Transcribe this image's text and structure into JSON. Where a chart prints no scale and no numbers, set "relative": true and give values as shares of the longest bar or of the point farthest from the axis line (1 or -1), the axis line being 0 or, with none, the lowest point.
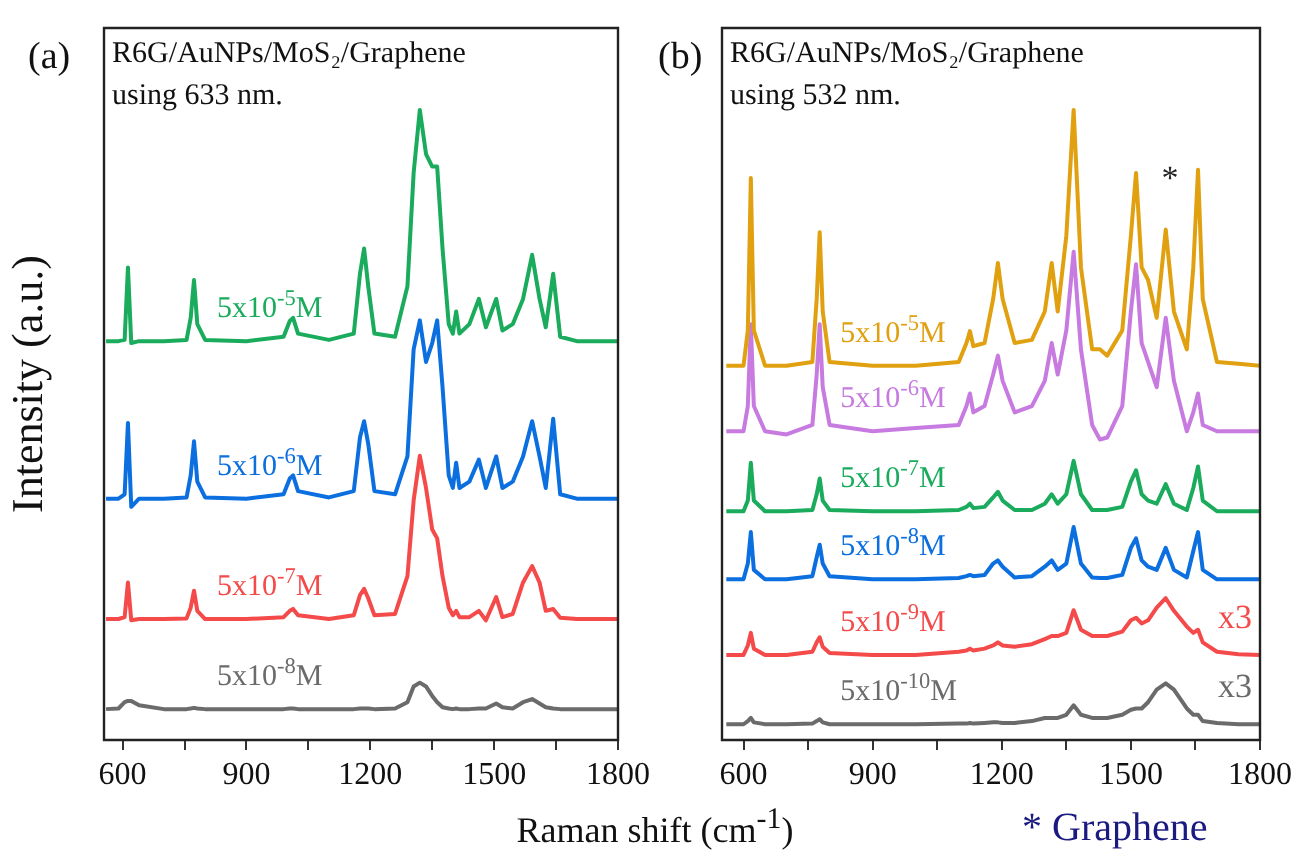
{
  "chart_data": [
    {
      "type": "line",
      "title": "R6G/AuNPs/MoS₂/Graphene",
      "subtitle": "using 633 nm.",
      "xlabel": "Raman shift (cm$^{-1}$)",
      "ylabel": "Intensity (a.u.)",
      "relative": true,
      "xlim": [
        555,
        1800
      ],
      "xticks": [
        600,
        {
          "value": 750,
          "label": null
        },
        900,
        {
          "value": 1050,
          "label": null
        },
        1200,
        {
          "value": 1350,
          "label": null
        },
        1500,
        {
          "value": 1650,
          "label": null
        },
        1800
      ],
      "tick_labels": "x",
      "grid": false,
      "legend": false,
      "marker": "none",
      "line_style": "solid",
      "annotations": [
        "(a)"
      ],
      "x": [
        560,
        590,
        605,
        613,
        621,
        640,
        700,
        755,
        765,
        773,
        781,
        800,
        900,
        990,
        1005,
        1013,
        1025,
        1100,
        1160,
        1175,
        1185,
        1195,
        1210,
        1260,
        1290,
        1305,
        1320,
        1335,
        1350,
        1362,
        1375,
        1390,
        1400,
        1408,
        1416,
        1440,
        1463,
        1480,
        1505,
        1520,
        1545,
        1570,
        1592,
        1610,
        1625,
        1643,
        1660,
        1700,
        1800
      ],
      "series": [
        {
          "name": "5x10$^{-5}$M",
          "color": "#1aab5c",
          "values": [
            0.633,
            0.633,
            0.635,
            0.75,
            0.63,
            0.633,
            0.633,
            0.635,
            0.67,
            0.73,
            0.66,
            0.635,
            0.633,
            0.64,
            0.665,
            0.67,
            0.645,
            0.635,
            0.645,
            0.74,
            0.78,
            0.72,
            0.645,
            0.64,
            0.72,
            0.9,
            1.0,
            0.93,
            0.91,
            0.91,
            0.78,
            0.66,
            0.645,
            0.68,
            0.645,
            0.66,
            0.7,
            0.655,
            0.7,
            0.65,
            0.66,
            0.7,
            0.77,
            0.7,
            0.655,
            0.74,
            0.64,
            0.633,
            0.633
          ]
        },
        {
          "name": "5x10$^{-6}$M",
          "color": "#0b6fe0",
          "values": [
            0.383,
            0.383,
            0.39,
            0.503,
            0.37,
            0.383,
            0.383,
            0.385,
            0.42,
            0.474,
            0.41,
            0.385,
            0.383,
            0.39,
            0.415,
            0.42,
            0.395,
            0.385,
            0.395,
            0.48,
            0.506,
            0.47,
            0.395,
            0.39,
            0.45,
            0.62,
            0.666,
            0.6,
            0.63,
            0.666,
            0.56,
            0.42,
            0.4,
            0.44,
            0.4,
            0.41,
            0.445,
            0.4,
            0.45,
            0.4,
            0.41,
            0.45,
            0.506,
            0.45,
            0.4,
            0.51,
            0.39,
            0.383,
            0.383
          ]
        },
        {
          "name": "5x10$^{-7}$M",
          "color": "#f44a4a",
          "values": [
            0.192,
            0.192,
            0.195,
            0.25,
            0.19,
            0.192,
            0.192,
            0.193,
            0.21,
            0.237,
            0.205,
            0.192,
            0.192,
            0.195,
            0.205,
            0.208,
            0.198,
            0.192,
            0.198,
            0.23,
            0.24,
            0.225,
            0.198,
            0.2,
            0.26,
            0.38,
            0.451,
            0.4,
            0.334,
            0.32,
            0.26,
            0.21,
            0.198,
            0.205,
            0.195,
            0.195,
            0.205,
            0.19,
            0.227,
            0.195,
            0.2,
            0.25,
            0.276,
            0.25,
            0.205,
            0.208,
            0.194,
            0.192,
            0.192
          ]
        },
        {
          "name": "5x10$^{-8}$M",
          "color": "#6b6b6b",
          "values": [
            0.049,
            0.05,
            0.06,
            0.062,
            0.062,
            0.055,
            0.049,
            0.049,
            0.05,
            0.051,
            0.05,
            0.049,
            0.049,
            0.049,
            0.05,
            0.05,
            0.049,
            0.049,
            0.049,
            0.05,
            0.05,
            0.05,
            0.049,
            0.05,
            0.06,
            0.085,
            0.091,
            0.085,
            0.07,
            0.06,
            0.052,
            0.05,
            0.049,
            0.05,
            0.049,
            0.049,
            0.05,
            0.05,
            0.058,
            0.052,
            0.05,
            0.06,
            0.065,
            0.058,
            0.052,
            0.05,
            0.049,
            0.049,
            0.049
          ]
        }
      ]
    },
    {
      "type": "line",
      "title": "R6G/AuNPs/MoS₂/Graphene",
      "subtitle": "using 532 nm.",
      "relative": true,
      "xlim": [
        550,
        1800
      ],
      "xticks": [
        600,
        {
          "value": 750,
          "label": null
        },
        900,
        {
          "value": 1050,
          "label": null
        },
        1200,
        {
          "value": 1350,
          "label": null
        },
        1500,
        {
          "value": 1650,
          "label": null
        },
        1800
      ],
      "tick_labels": "x",
      "grid": false,
      "legend": false,
      "marker": "none",
      "line_style": "solid",
      "annotations": [
        "(b)",
        "* Graphene",
        "*",
        "x3",
        "x3"
      ],
      "x": [
        560,
        600,
        610,
        617,
        624,
        650,
        700,
        760,
        770,
        777,
        784,
        800,
        900,
        1000,
        1100,
        1118,
        1126,
        1134,
        1160,
        1180,
        1191,
        1202,
        1230,
        1270,
        1300,
        1316,
        1330,
        1350,
        1367,
        1384,
        1410,
        1428,
        1445,
        1480,
        1500,
        1512,
        1525,
        1540,
        1560,
        1581,
        1600,
        1630,
        1645,
        1656,
        1667,
        1700,
        1750,
        1800
      ],
      "series": [
        {
          "name": "5x10$^{-5}$M",
          "color": "#e0a010",
          "values": [
            0.594,
            0.594,
            0.65,
            0.892,
            0.65,
            0.594,
            0.594,
            0.6,
            0.7,
            0.806,
            0.68,
            0.6,
            0.594,
            0.594,
            0.6,
            0.63,
            0.649,
            0.625,
            0.63,
            0.7,
            0.757,
            0.7,
            0.63,
            0.635,
            0.68,
            0.757,
            0.68,
            0.8,
            1.0,
            0.75,
            0.62,
            0.62,
            0.61,
            0.65,
            0.8,
            0.9,
            0.75,
            0.73,
            0.67,
            0.81,
            0.68,
            0.62,
            0.75,
            0.905,
            0.7,
            0.6,
            0.597,
            0.594
          ]
        },
        {
          "name": "5x10$^{-6}$M",
          "color": "#c77ae0",
          "values": [
            0.49,
            0.49,
            0.53,
            0.66,
            0.53,
            0.49,
            0.485,
            0.5,
            0.58,
            0.66,
            0.56,
            0.5,
            0.49,
            0.495,
            0.5,
            0.53,
            0.55,
            0.52,
            0.53,
            0.58,
            0.61,
            0.57,
            0.52,
            0.53,
            0.57,
            0.63,
            0.58,
            0.65,
            0.775,
            0.62,
            0.5,
            0.477,
            0.48,
            0.53,
            0.68,
            0.755,
            0.63,
            0.6,
            0.56,
            0.67,
            0.57,
            0.49,
            0.52,
            0.55,
            0.5,
            0.49,
            0.49,
            0.49
          ]
        },
        {
          "name": "5x10$^{-7}$M",
          "color": "#1aab5c",
          "values": [
            0.363,
            0.363,
            0.38,
            0.44,
            0.38,
            0.363,
            0.363,
            0.365,
            0.39,
            0.415,
            0.38,
            0.365,
            0.363,
            0.363,
            0.365,
            0.37,
            0.375,
            0.368,
            0.37,
            0.385,
            0.394,
            0.38,
            0.365,
            0.365,
            0.375,
            0.39,
            0.375,
            0.39,
            0.443,
            0.39,
            0.365,
            0.365,
            0.365,
            0.37,
            0.41,
            0.428,
            0.39,
            0.38,
            0.375,
            0.406,
            0.375,
            0.365,
            0.4,
            0.434,
            0.38,
            0.363,
            0.363,
            0.363
          ]
        },
        {
          "name": "5x10$^{-8}$M",
          "color": "#0b6fe0",
          "values": [
            0.255,
            0.255,
            0.28,
            0.33,
            0.27,
            0.255,
            0.255,
            0.26,
            0.29,
            0.31,
            0.28,
            0.26,
            0.255,
            0.255,
            0.257,
            0.26,
            0.262,
            0.26,
            0.262,
            0.28,
            0.285,
            0.275,
            0.258,
            0.26,
            0.275,
            0.285,
            0.27,
            0.28,
            0.338,
            0.28,
            0.258,
            0.257,
            0.257,
            0.262,
            0.305,
            0.32,
            0.285,
            0.275,
            0.27,
            0.305,
            0.27,
            0.258,
            0.3,
            0.33,
            0.27,
            0.255,
            0.255,
            0.255
          ]
        },
        {
          "name": "5x10$^{-9}$M",
          "color": "#f44a4a",
          "values": [
            0.135,
            0.135,
            0.15,
            0.17,
            0.145,
            0.135,
            0.135,
            0.14,
            0.155,
            0.163,
            0.148,
            0.138,
            0.135,
            0.135,
            0.14,
            0.142,
            0.145,
            0.142,
            0.145,
            0.15,
            0.155,
            0.15,
            0.148,
            0.152,
            0.16,
            0.165,
            0.165,
            0.17,
            0.206,
            0.175,
            0.165,
            0.165,
            0.165,
            0.172,
            0.19,
            0.194,
            0.185,
            0.19,
            0.21,
            0.225,
            0.205,
            0.18,
            0.17,
            0.175,
            0.155,
            0.14,
            0.136,
            0.135
          ]
        },
        {
          "name": "5x10$^{-10}$M",
          "color": "#6b6b6b",
          "values": [
            0.025,
            0.025,
            0.03,
            0.035,
            0.028,
            0.025,
            0.025,
            0.026,
            0.03,
            0.033,
            0.028,
            0.025,
            0.025,
            0.025,
            0.026,
            0.026,
            0.027,
            0.026,
            0.027,
            0.028,
            0.028,
            0.027,
            0.027,
            0.03,
            0.035,
            0.035,
            0.035,
            0.04,
            0.055,
            0.04,
            0.035,
            0.035,
            0.035,
            0.04,
            0.048,
            0.05,
            0.05,
            0.06,
            0.08,
            0.09,
            0.08,
            0.05,
            0.04,
            0.04,
            0.03,
            0.027,
            0.025,
            0.025
          ]
        }
      ]
    }
  ]
}
